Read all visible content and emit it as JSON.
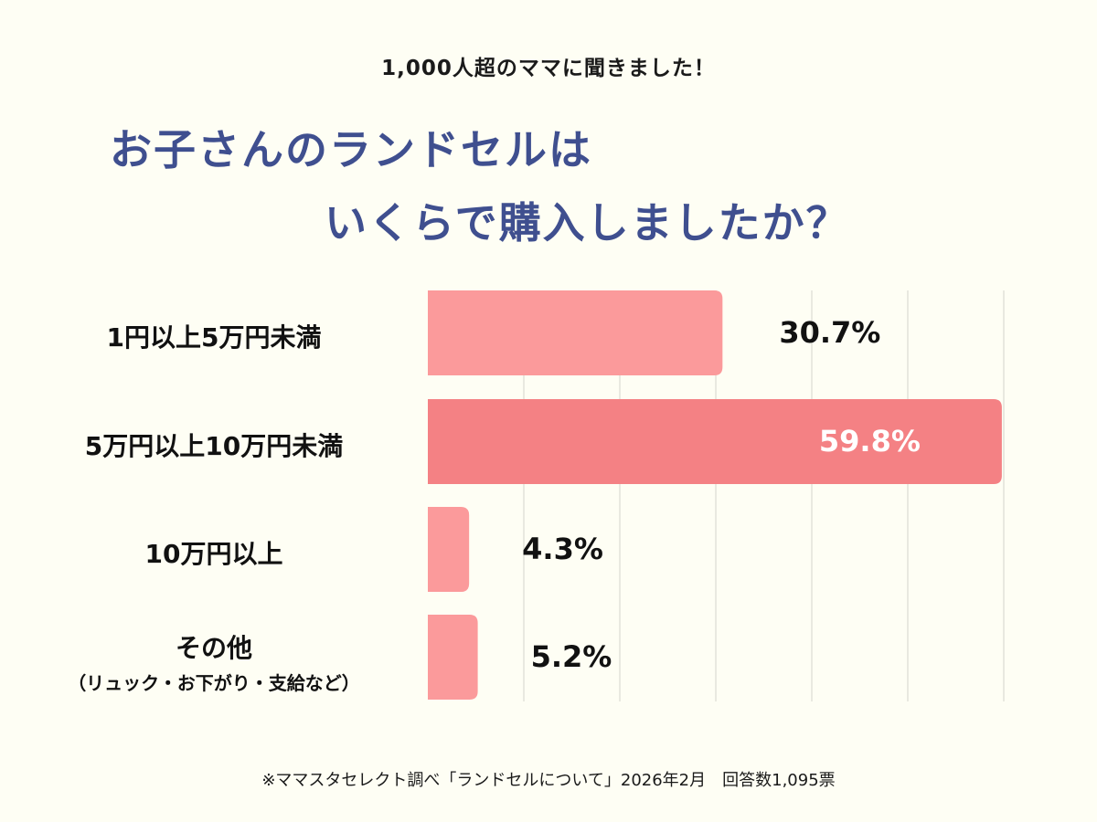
{
  "header": {
    "subtitle": "1,000人超のママに聞きました！",
    "title_line1": "お子さんのランドセルは",
    "title_line2": "いくらで購入しましたか？"
  },
  "colors": {
    "bar": "#fb9a9b",
    "bar_highlight": "#f48184",
    "title": "#3f4f8f",
    "grid": "#e2e2da",
    "value_text_dark": "#111111",
    "value_text_light": "#ffffff"
  },
  "chart_data": {
    "type": "bar",
    "orientation": "horizontal",
    "categories": [
      {
        "label": "1円以上5万円未満",
        "sublabel": ""
      },
      {
        "label": "5万円以上10万円未満",
        "sublabel": ""
      },
      {
        "label": "10万円以上",
        "sublabel": ""
      },
      {
        "label": "その他",
        "sublabel": "（リュック・お下がり・支給など）"
      }
    ],
    "values": [
      30.7,
      59.8,
      4.3,
      5.2
    ],
    "value_labels": [
      "30.7%",
      "59.8%",
      "4.3%",
      "5.2%"
    ],
    "highlight_index": 1,
    "xlim": [
      0,
      60
    ],
    "grid": true,
    "unit": "%"
  },
  "footnote": "※ママスタセレクト調べ「ランドセルについて」2026年2月　回答数1,095票"
}
